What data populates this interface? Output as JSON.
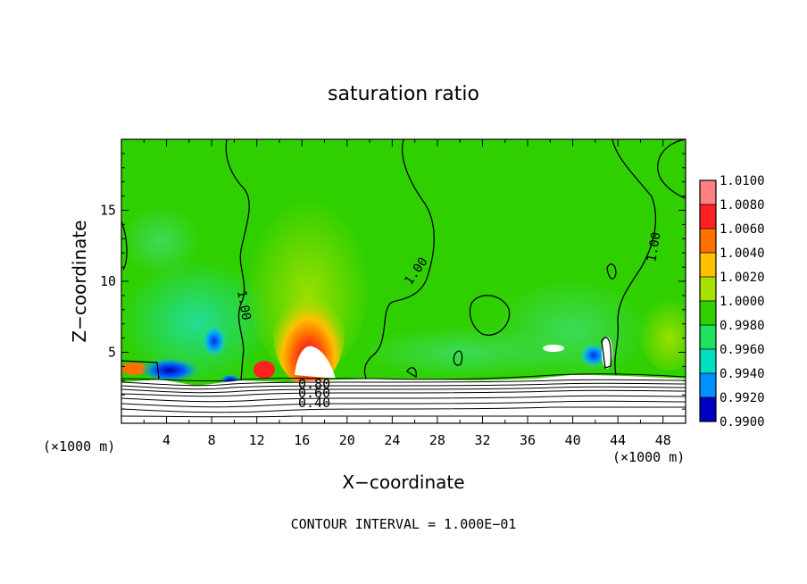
{
  "chart_data": {
    "type": "heatmap",
    "title": "saturation ratio",
    "xlabel": "X−coordinate",
    "ylabel": "Z−coordinate",
    "x_unit_left": "(×1000 m)",
    "x_unit_right": "(×1000 m)",
    "xlim": [
      0,
      50
    ],
    "ylim": [
      0,
      20
    ],
    "x_ticks": [
      4,
      8,
      12,
      16,
      20,
      24,
      28,
      32,
      36,
      40,
      44,
      48
    ],
    "y_ticks": [
      5,
      10,
      15
    ],
    "footer": "CONTOUR INTERVAL = 1.000E−01",
    "colorbar": {
      "labels": [
        "1.0100",
        "1.0080",
        "1.0060",
        "1.0040",
        "1.0020",
        "1.0000",
        "0.9980",
        "0.9960",
        "0.9940",
        "0.9920",
        "0.9900"
      ],
      "colors": [
        "#ff8080",
        "#ff2020",
        "#ff7000",
        "#ffc000",
        "#a8e000",
        "#30d000",
        "#20e060",
        "#00e0c0",
        "#0090ff",
        "#0000c0",
        "#7000a0"
      ]
    },
    "contour_labels": [
      "1.00",
      "1.00",
      "1.00",
      "0.80",
      "0.60",
      "0.40"
    ],
    "background_value": 1.0
  }
}
